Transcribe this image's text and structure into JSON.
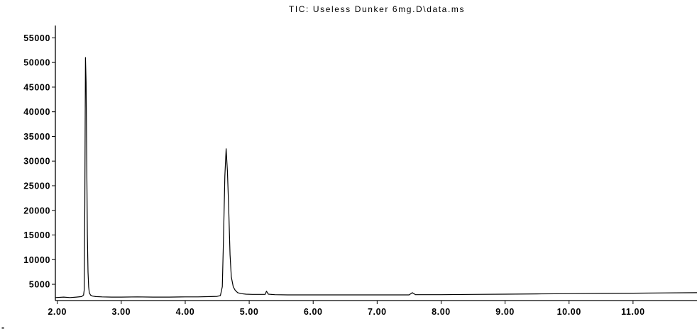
{
  "chart_data": {
    "type": "line",
    "title": "TIC: Useless Dunker 6mg.D\\data.ms",
    "xlabel": "",
    "ylabel": "",
    "xlim": [
      1.97,
      12.0
    ],
    "ylim": [
      1700,
      57500
    ],
    "x_ticks": [
      {
        "value": 2.0,
        "label": "2.00"
      },
      {
        "value": 3.0,
        "label": "3.00"
      },
      {
        "value": 4.0,
        "label": "4.00"
      },
      {
        "value": 5.0,
        "label": "5.00"
      },
      {
        "value": 6.0,
        "label": "6.00"
      },
      {
        "value": 7.0,
        "label": "7.00"
      },
      {
        "value": 8.0,
        "label": "8.00"
      },
      {
        "value": 9.0,
        "label": "9.00"
      },
      {
        "value": 10.0,
        "label": "10.00"
      },
      {
        "value": 11.0,
        "label": "11.00"
      }
    ],
    "y_ticks": [
      {
        "value": 5000,
        "label": "5000"
      },
      {
        "value": 10000,
        "label": "10000"
      },
      {
        "value": 15000,
        "label": "15000"
      },
      {
        "value": 20000,
        "label": "20000"
      },
      {
        "value": 25000,
        "label": "25000"
      },
      {
        "value": 30000,
        "label": "30000"
      },
      {
        "value": 35000,
        "label": "35000"
      },
      {
        "value": 40000,
        "label": "40000"
      },
      {
        "value": 45000,
        "label": "45000"
      },
      {
        "value": 50000,
        "label": "50000"
      },
      {
        "value": 55000,
        "label": "55000"
      }
    ],
    "grid": false,
    "series": [
      {
        "x": [
          1.97,
          2.1,
          2.2,
          2.3,
          2.38,
          2.41,
          2.42,
          2.43,
          2.44,
          2.45,
          2.46,
          2.47,
          2.48,
          2.49,
          2.5,
          2.52,
          2.55,
          2.6,
          2.7,
          2.85,
          3.0,
          3.25,
          3.5,
          3.75,
          4.0,
          4.2,
          4.4,
          4.5,
          4.55,
          4.58,
          4.6,
          4.62,
          4.64,
          4.66,
          4.68,
          4.7,
          4.72,
          4.75,
          4.78,
          4.82,
          4.88,
          4.95,
          5.05,
          5.15,
          5.25,
          5.27,
          5.3,
          5.4,
          5.6,
          5.8,
          6.0,
          6.3,
          6.6,
          7.0,
          7.3,
          7.5,
          7.55,
          7.6,
          8.0,
          8.5,
          9.0,
          9.5,
          10.0,
          10.5,
          11.0,
          11.5,
          12.0
        ],
        "y": [
          2300,
          2400,
          2300,
          2400,
          2500,
          2800,
          3800,
          21000,
          51000,
          46000,
          30000,
          15000,
          7500,
          4500,
          3300,
          2800,
          2600,
          2500,
          2450,
          2400,
          2400,
          2450,
          2400,
          2400,
          2450,
          2450,
          2500,
          2550,
          2700,
          4500,
          15000,
          27000,
          32500,
          28000,
          20000,
          11000,
          6500,
          4500,
          3800,
          3300,
          3100,
          3000,
          2950,
          2950,
          2950,
          3600,
          3000,
          2900,
          2850,
          2850,
          2850,
          2850,
          2850,
          2850,
          2850,
          2850,
          3300,
          2900,
          2900,
          2950,
          3000,
          3050,
          3100,
          3150,
          3200,
          3250,
          3300
        ]
      }
    ]
  },
  "footer_mark": "-"
}
